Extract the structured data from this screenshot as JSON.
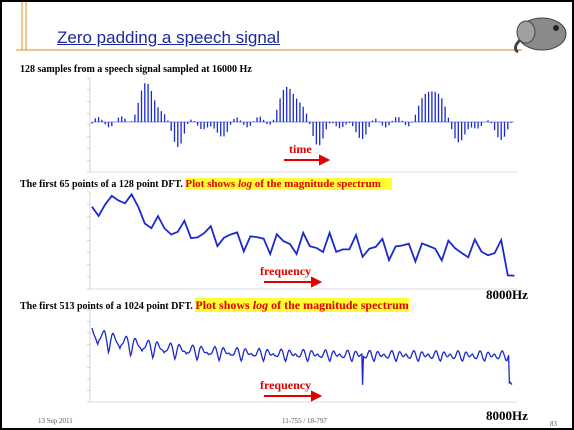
{
  "header": {
    "title": "Zero padding a speech signal"
  },
  "sections": [
    {
      "caption": "128 samples from a speech signal sampled at 16000 Hz",
      "axis_label": "time"
    },
    {
      "caption": "The first 65 points of a 128 point DFT.",
      "highlight": [
        "Plot shows ",
        "log",
        " of the magnitude spectrum"
      ],
      "axis_label": "frequency",
      "end_label": "8000Hz"
    },
    {
      "caption": "The first 513 points of a 1024 point DFT.",
      "highlight": [
        "Plot shows ",
        "log",
        " of the magnitude spectrum"
      ],
      "axis_label": "frequency",
      "end_label": "8000Hz"
    }
  ],
  "footer": {
    "date": "13 Sep 2011",
    "course": "11-755 / 18-797",
    "page": "83"
  }
}
